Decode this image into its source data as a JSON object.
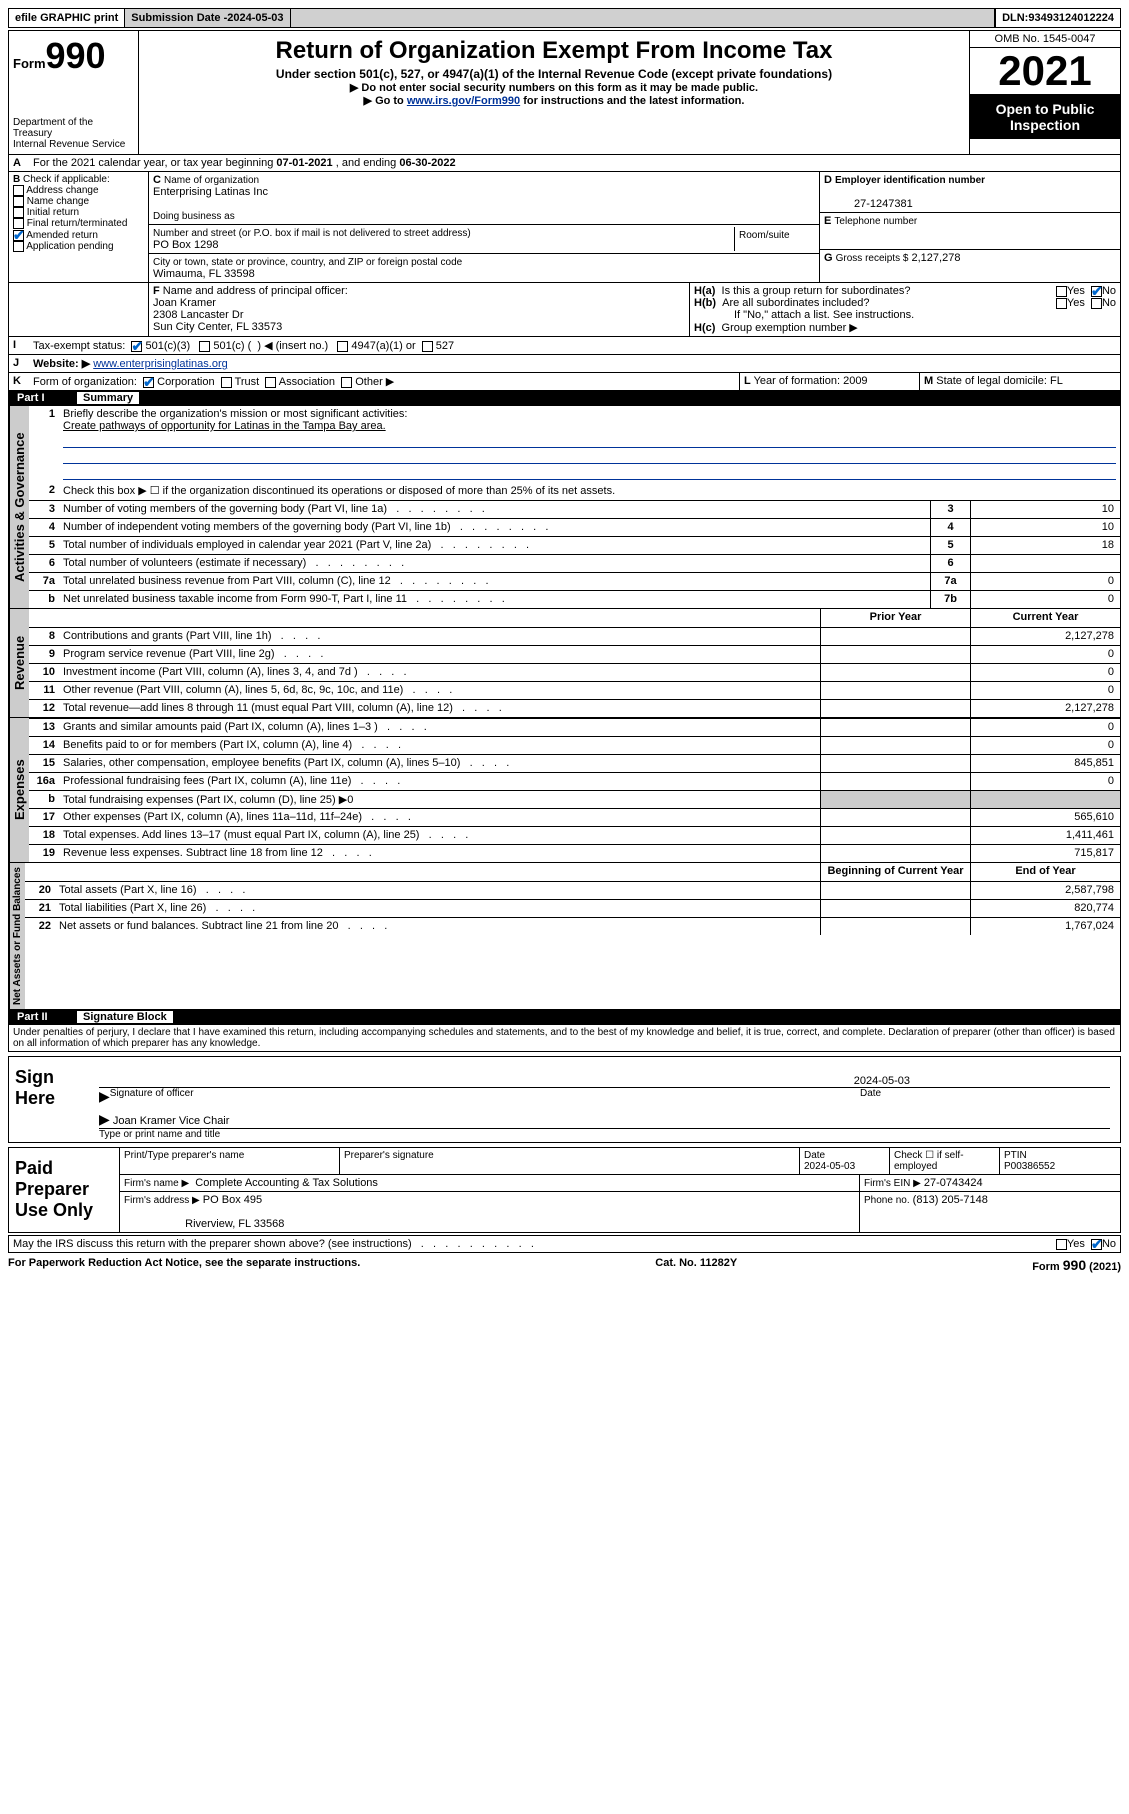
{
  "topbar": {
    "efile": "efile GRAPHIC print",
    "submission_label": "Submission Date - ",
    "submission_date": "2024-05-03",
    "dln_label": "DLN: ",
    "dln": "93493124012224"
  },
  "header": {
    "form_prefix": "Form",
    "form_number": "990",
    "title": "Return of Organization Exempt From Income Tax",
    "subtitle": "Under section 501(c), 527, or 4947(a)(1) of the Internal Revenue Code (except private foundations)",
    "note1": "▶ Do not enter social security numbers on this form as it may be made public.",
    "note2_pre": "▶ Go to ",
    "note2_link": "www.irs.gov/Form990",
    "note2_post": " for instructions and the latest information.",
    "dept": "Department of the Treasury\nInternal Revenue Service",
    "omb": "OMB No. 1545-0047",
    "year": "2021",
    "open": "Open to Public Inspection"
  },
  "periodA": {
    "text_pre": "For the 2021 calendar year, or tax year beginning ",
    "begin": "07-01-2021",
    "mid": " , and ending ",
    "end": "06-30-2022"
  },
  "B": {
    "label": "Check if applicable:",
    "items": [
      {
        "label": "Address change",
        "checked": false
      },
      {
        "label": "Name change",
        "checked": false
      },
      {
        "label": "Initial return",
        "checked": false
      },
      {
        "label": "Final return/terminated",
        "checked": false
      },
      {
        "label": "Amended return",
        "checked": true
      },
      {
        "label": "Application pending",
        "checked": false
      }
    ]
  },
  "C": {
    "name_label": "Name of organization",
    "name": "Enterprising Latinas Inc",
    "dba_label": "Doing business as",
    "dba": "",
    "street_label": "Number and street (or P.O. box if mail is not delivered to street address)",
    "room_label": "Room/suite",
    "street": "PO Box 1298",
    "city_label": "City or town, state or province, country, and ZIP or foreign postal code",
    "city": "Wimauma, FL  33598"
  },
  "D": {
    "label": "Employer identification number",
    "value": "27-1247381"
  },
  "E": {
    "label": "Telephone number",
    "value": ""
  },
  "G": {
    "label": "Gross receipts $",
    "value": "2,127,278"
  },
  "F": {
    "label": "Name and address of principal officer:",
    "name": "Joan Kramer",
    "addr1": "2308 Lancaster Dr",
    "addr2": "Sun City Center, FL  33573"
  },
  "H": {
    "a": "Is this a group return for subordinates?",
    "a_no": true,
    "b": "Are all subordinates included?",
    "b_note": "If \"No,\" attach a list. See instructions.",
    "c": "Group exemption number ▶"
  },
  "I": {
    "label": "Tax-exempt status:",
    "c3": true,
    "insert": "◀ (insert no.)"
  },
  "J": {
    "label": "Website: ▶",
    "value": "www.enterprisinglatinas.org"
  },
  "K": {
    "label": "Form of organization:",
    "corp": true
  },
  "L": {
    "label": "Year of formation:",
    "value": "2009"
  },
  "M": {
    "label": "State of legal domicile:",
    "value": "FL"
  },
  "part1": {
    "title": "Part I",
    "label": "Summary",
    "line1_label": "Briefly describe the organization's mission or most significant activities:",
    "mission": "Create pathways of opportunity for Latinas in the Tampa Bay area.",
    "line2": "Check this box ▶ ☐  if the organization discontinued its operations or disposed of more than 25% of its net assets.",
    "tabs": {
      "gov": "Activities & Governance",
      "rev": "Revenue",
      "exp": "Expenses",
      "net": "Net Assets or Fund Balances"
    },
    "rows_gov": [
      {
        "n": "3",
        "d": "Number of voting members of the governing body (Part VI, line 1a)",
        "box": "3",
        "v": "10"
      },
      {
        "n": "4",
        "d": "Number of independent voting members of the governing body (Part VI, line 1b)",
        "box": "4",
        "v": "10"
      },
      {
        "n": "5",
        "d": "Total number of individuals employed in calendar year 2021 (Part V, line 2a)",
        "box": "5",
        "v": "18"
      },
      {
        "n": "6",
        "d": "Total number of volunteers (estimate if necessary)",
        "box": "6",
        "v": ""
      },
      {
        "n": "7a",
        "d": "Total unrelated business revenue from Part VIII, column (C), line 12",
        "box": "7a",
        "v": "0"
      },
      {
        "n": "b",
        "d": "Net unrelated business taxable income from Form 990-T, Part I, line 11",
        "box": "7b",
        "v": "0"
      }
    ],
    "col_headers": {
      "prior": "Prior Year",
      "current": "Current Year",
      "begin": "Beginning of Current Year",
      "end": "End of Year"
    },
    "rows_rev": [
      {
        "n": "8",
        "d": "Contributions and grants (Part VIII, line 1h)",
        "p": "",
        "c": "2,127,278"
      },
      {
        "n": "9",
        "d": "Program service revenue (Part VIII, line 2g)",
        "p": "",
        "c": "0"
      },
      {
        "n": "10",
        "d": "Investment income (Part VIII, column (A), lines 3, 4, and 7d )",
        "p": "",
        "c": "0"
      },
      {
        "n": "11",
        "d": "Other revenue (Part VIII, column (A), lines 5, 6d, 8c, 9c, 10c, and 11e)",
        "p": "",
        "c": "0"
      },
      {
        "n": "12",
        "d": "Total revenue—add lines 8 through 11 (must equal Part VIII, column (A), line 12)",
        "p": "",
        "c": "2,127,278"
      }
    ],
    "rows_exp": [
      {
        "n": "13",
        "d": "Grants and similar amounts paid (Part IX, column (A), lines 1–3 )",
        "p": "",
        "c": "0"
      },
      {
        "n": "14",
        "d": "Benefits paid to or for members (Part IX, column (A), line 4)",
        "p": "",
        "c": "0"
      },
      {
        "n": "15",
        "d": "Salaries, other compensation, employee benefits (Part IX, column (A), lines 5–10)",
        "p": "",
        "c": "845,851"
      },
      {
        "n": "16a",
        "d": "Professional fundraising fees (Part IX, column (A), line 11e)",
        "p": "",
        "c": "0"
      },
      {
        "n": "b",
        "d": "Total fundraising expenses (Part IX, column (D), line 25) ▶0",
        "shade": true
      },
      {
        "n": "17",
        "d": "Other expenses (Part IX, column (A), lines 11a–11d, 11f–24e)",
        "p": "",
        "c": "565,610"
      },
      {
        "n": "18",
        "d": "Total expenses. Add lines 13–17 (must equal Part IX, column (A), line 25)",
        "p": "",
        "c": "1,411,461"
      },
      {
        "n": "19",
        "d": "Revenue less expenses. Subtract line 18 from line 12",
        "p": "",
        "c": "715,817"
      }
    ],
    "rows_net": [
      {
        "n": "20",
        "d": "Total assets (Part X, line 16)",
        "p": "",
        "c": "2,587,798"
      },
      {
        "n": "21",
        "d": "Total liabilities (Part X, line 26)",
        "p": "",
        "c": "820,774"
      },
      {
        "n": "22",
        "d": "Net assets or fund balances. Subtract line 21 from line 20",
        "p": "",
        "c": "1,767,024"
      }
    ]
  },
  "part2": {
    "title": "Part II",
    "label": "Signature Block",
    "perjury": "Under penalties of perjury, I declare that I have examined this return, including accompanying schedules and statements, and to the best of my knowledge and belief, it is true, correct, and complete. Declaration of preparer (other than officer) is based on all information of which preparer has any knowledge."
  },
  "sign": {
    "here": "Sign Here",
    "sig_label": "Signature of officer",
    "date_label": "Date",
    "date": "2024-05-03",
    "name": "Joan Kramer  Vice Chair",
    "name_label": "Type or print name and title"
  },
  "preparer": {
    "label": "Paid Preparer Use Only",
    "print_label": "Print/Type preparer's name",
    "sig_label": "Preparer's signature",
    "date_label": "Date",
    "date": "2024-05-03",
    "check_label": "Check ☐ if self-employed",
    "ptin_label": "PTIN",
    "ptin": "P00386552",
    "firm_name_label": "Firm's name    ▶",
    "firm_name": "Complete Accounting & Tax Solutions",
    "firm_ein_label": "Firm's EIN ▶",
    "firm_ein": "27-0743424",
    "firm_addr_label": "Firm's address ▶",
    "firm_addr1": "PO Box 495",
    "firm_addr2": "Riverview, FL  33568",
    "phone_label": "Phone no.",
    "phone": "(813) 205-7148"
  },
  "discuss": {
    "text": "May the IRS discuss this return with the preparer shown above? (see instructions)",
    "no": true
  },
  "footer": {
    "left": "For Paperwork Reduction Act Notice, see the separate instructions.",
    "mid": "Cat. No. 11282Y",
    "right": "Form 990 (2021)"
  }
}
